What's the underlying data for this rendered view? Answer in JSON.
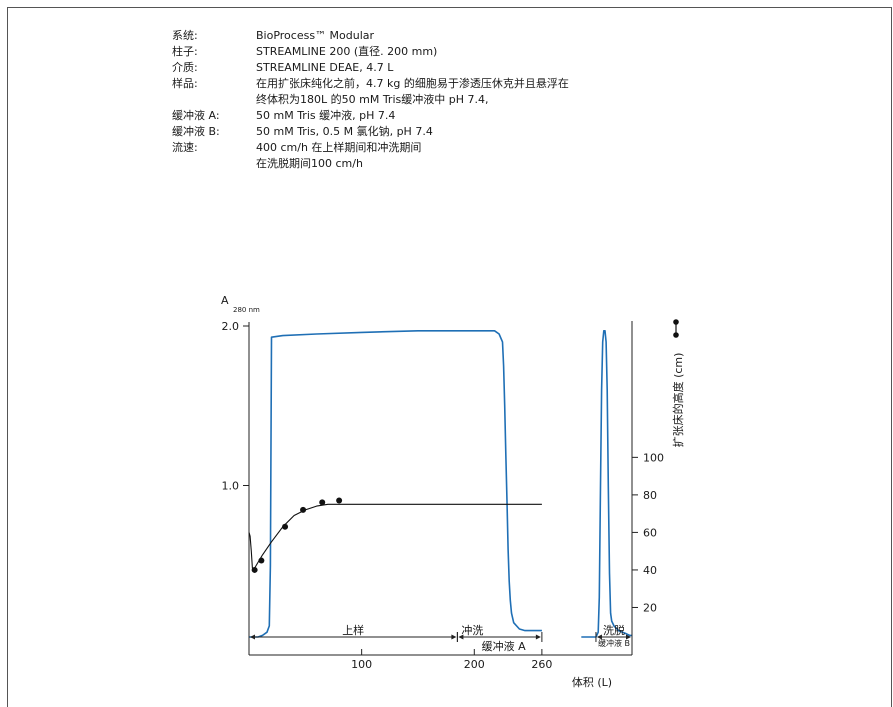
{
  "specs": [
    {
      "label": "系统:",
      "lines": [
        "BioProcess™ Modular"
      ]
    },
    {
      "label": "柱子:",
      "lines": [
        "STREAMLINE 200 (直径. 200 mm)"
      ]
    },
    {
      "label": "介质:",
      "lines": [
        "STREAMLINE DEAE, 4.7 L"
      ]
    },
    {
      "label": "样品:",
      "lines": [
        "在用扩张床纯化之前，4.7 kg 的细胞易于渗透压休克并且悬浮在",
        "终体积为180L 的50 mM Tris缓冲液中 pH 7.4,"
      ]
    },
    {
      "label": "缓冲液 A:",
      "lines": [
        "50 mM Tris 缓冲液, pH 7.4"
      ]
    },
    {
      "label": "缓冲液 B:",
      "lines": [
        "50 mM Tris, 0.5 M 氯化钠, pH 7.4"
      ]
    },
    {
      "label": "流速:",
      "lines": [
        "400 cm/h 在上样期间和冲洗期间",
        "在洗脱期间100 cm/h"
      ]
    }
  ],
  "chart_data": {
    "type": "line",
    "ylabel_main": "A",
    "ylabel_sub": "280 nm",
    "y2label": "扩张床的高度 (cm)",
    "xlabel": "体积 (L)",
    "xlim": [
      0,
      340
    ],
    "ylim": [
      0,
      2.0
    ],
    "y2lim": [
      0,
      170
    ],
    "x_ticks": [
      100,
      200,
      260
    ],
    "y_ticks": [
      {
        "value": 2.0,
        "label": "2.0"
      },
      {
        "value": 1.0,
        "label": "1.0"
      }
    ],
    "y2_ticks": [
      20,
      40,
      60,
      80,
      100
    ],
    "colors": {
      "absorbance": "#1f6fb5",
      "height": "#111111"
    },
    "series": [
      {
        "axis": "left",
        "x": [
          0,
          3,
          8,
          12,
          16,
          18,
          19,
          20,
          30,
          60,
          100,
          150,
          190,
          218,
          222,
          225,
          226,
          227,
          228,
          229,
          230,
          231,
          232,
          233,
          235,
          240,
          245,
          250,
          255,
          260,
          275,
          295,
          308,
          310,
          311,
          312,
          313,
          314,
          315,
          316,
          317,
          318,
          319,
          320,
          321,
          322,
          324,
          328,
          335,
          338,
          340
        ],
        "y": [
          0.05,
          0.05,
          0.05,
          0.06,
          0.08,
          0.12,
          0.5,
          1.93,
          1.94,
          1.95,
          1.96,
          1.97,
          1.97,
          1.97,
          1.95,
          1.9,
          1.75,
          1.5,
          1.2,
          0.9,
          0.6,
          0.4,
          0.28,
          0.2,
          0.14,
          0.1,
          0.09,
          0.09,
          0.09,
          0.09,
          null,
          0.05,
          0.05,
          0.08,
          0.3,
          1.0,
          1.6,
          1.9,
          1.97,
          1.97,
          1.9,
          1.6,
          1.0,
          0.45,
          0.2,
          0.15,
          0.12,
          0.09,
          0.07,
          0.06,
          0.06
        ]
      },
      {
        "axis": "right",
        "x": [
          0,
          1,
          2,
          3,
          5,
          8,
          12,
          20,
          30,
          40,
          50,
          60,
          70,
          80,
          90,
          100,
          150,
          200,
          250,
          260
        ],
        "y": [
          60,
          58,
          50,
          41,
          41,
          44,
          48,
          55,
          63,
          69,
          72,
          74,
          75,
          75,
          75,
          75,
          75,
          75,
          75,
          75
        ]
      }
    ],
    "points": {
      "axis": "right",
      "x": [
        5,
        11,
        32,
        48,
        65,
        80
      ],
      "y": [
        40,
        45,
        63,
        72,
        76,
        77
      ]
    },
    "phases": [
      {
        "label": "上样",
        "x0": 0,
        "x1": 185
      },
      {
        "label": "冲洗",
        "sublabel": "缓冲液  A",
        "x0": 185,
        "x1": 260
      },
      {
        "label": "洗脱",
        "sublabel": "缓冲液 B",
        "x0": 308,
        "x1": 340
      }
    ]
  }
}
